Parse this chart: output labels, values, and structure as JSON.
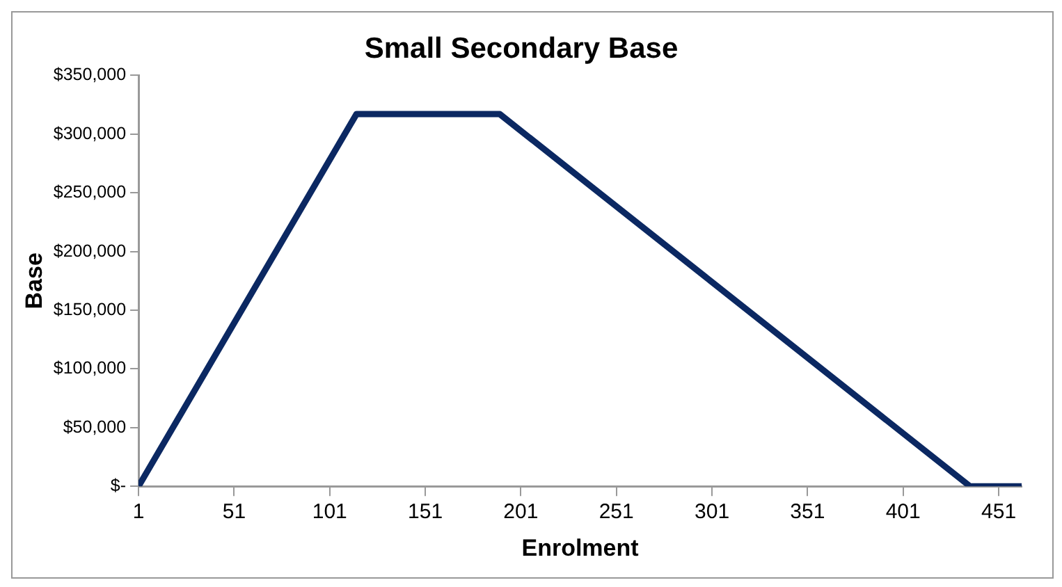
{
  "chart_data": {
    "type": "line",
    "title": "Small Secondary Base",
    "xlabel": "Enrolment",
    "ylabel": "Base",
    "x": [
      1,
      115,
      190,
      436,
      463
    ],
    "series": [
      {
        "color": "#0b2862",
        "values": [
          0,
          317000,
          317000,
          0,
          0
        ]
      }
    ],
    "xlim": [
      1,
      463
    ],
    "xticks": [
      1,
      51,
      101,
      151,
      201,
      251,
      301,
      351,
      401,
      451
    ],
    "ylim": [
      0,
      350000
    ],
    "yticks": [
      {
        "value": 0,
        "label": "$-"
      },
      {
        "value": 50000,
        "label": "$50,000"
      },
      {
        "value": 100000,
        "label": "$100,000"
      },
      {
        "value": 150000,
        "label": "$150,000"
      },
      {
        "value": 200000,
        "label": "$200,000"
      },
      {
        "value": 250000,
        "label": "$250,000"
      },
      {
        "value": 300000,
        "label": "$300,000"
      },
      {
        "value": 350000,
        "label": "$350,000"
      }
    ],
    "grid": false,
    "legend": false,
    "marker": "none",
    "line_style": "solid"
  }
}
